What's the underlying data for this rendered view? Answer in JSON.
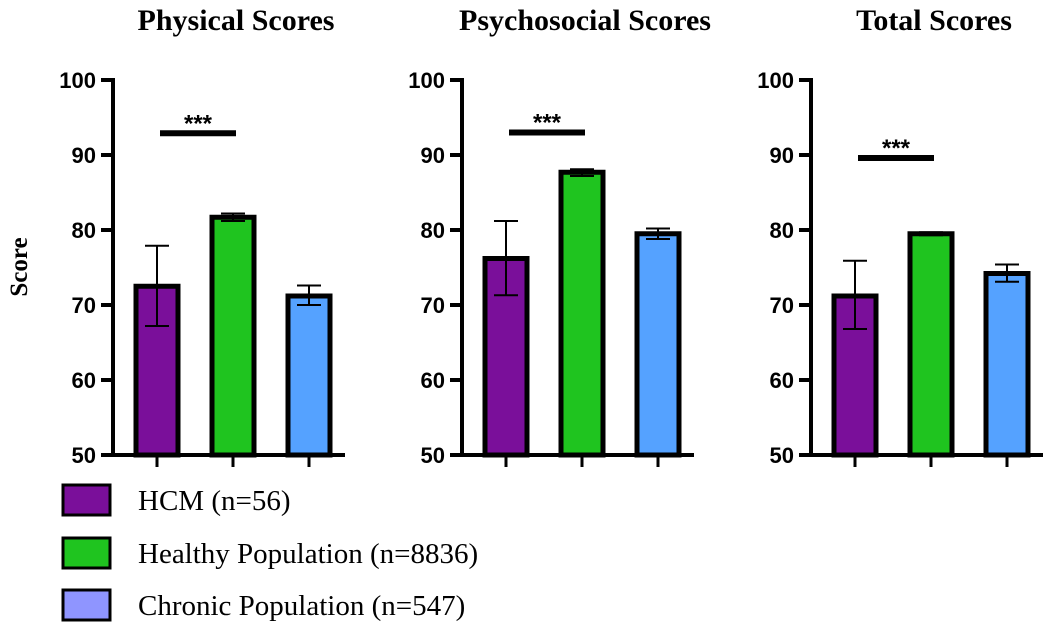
{
  "chart_data": [
    {
      "type": "bar",
      "title": "Physical Scores",
      "ylabel": "Score",
      "ylim": [
        50,
        100
      ],
      "yticks": [
        "50",
        "60",
        "70",
        "80",
        "90",
        "100"
      ],
      "categories": [
        "HCM (n=56)",
        "Healthy Population (n=8836)",
        "Chronic Population (n=547)"
      ],
      "values": [
        72.5,
        81.7,
        71.2
      ],
      "error_low": [
        67.2,
        81.2,
        70.0
      ],
      "error_high": [
        77.9,
        82.2,
        72.6
      ],
      "significance": {
        "label": "***",
        "y": 92.9,
        "from": 0,
        "to": 1
      }
    },
    {
      "type": "bar",
      "title": "Psychosocial Scores",
      "ylabel": "",
      "ylim": [
        50,
        100
      ],
      "yticks": [
        "50",
        "60",
        "70",
        "80",
        "90",
        "100"
      ],
      "categories": [
        "HCM (n=56)",
        "Healthy Population (n=8836)",
        "Chronic Population (n=547)"
      ],
      "values": [
        76.2,
        87.7,
        79.5
      ],
      "error_low": [
        71.3,
        87.2,
        78.8
      ],
      "error_high": [
        81.2,
        88.1,
        80.2
      ],
      "significance": {
        "label": "***",
        "y": 93.0,
        "from": 0,
        "to": 1
      }
    },
    {
      "type": "bar",
      "title": "Total Scores",
      "ylabel": "",
      "ylim": [
        50,
        100
      ],
      "yticks": [
        "50",
        "60",
        "70",
        "80",
        "90",
        "100"
      ],
      "categories": [
        "HCM (n=56)",
        "Healthy Population (n=8836)",
        "Chronic Population (n=547)"
      ],
      "values": [
        71.2,
        79.5,
        74.2
      ],
      "error_low": [
        66.8,
        79.3,
        73.1
      ],
      "error_high": [
        75.9,
        79.7,
        75.4
      ],
      "significance": {
        "label": "***",
        "y": 89.6,
        "from": 0,
        "to": 1
      }
    }
  ],
  "legend": {
    "placement": "bottom-left",
    "items": [
      {
        "label": "HCM (n=56)",
        "color": "#7a0f9a"
      },
      {
        "label": "Healthy Population (n=8836)",
        "color": "#1fc41f"
      },
      {
        "label": "Chronic Population (n=547)",
        "color": "#8f95ff"
      }
    ]
  },
  "bar_colors": [
    "#7a0f9a",
    "#1fc41f",
    "#55a2ff"
  ]
}
